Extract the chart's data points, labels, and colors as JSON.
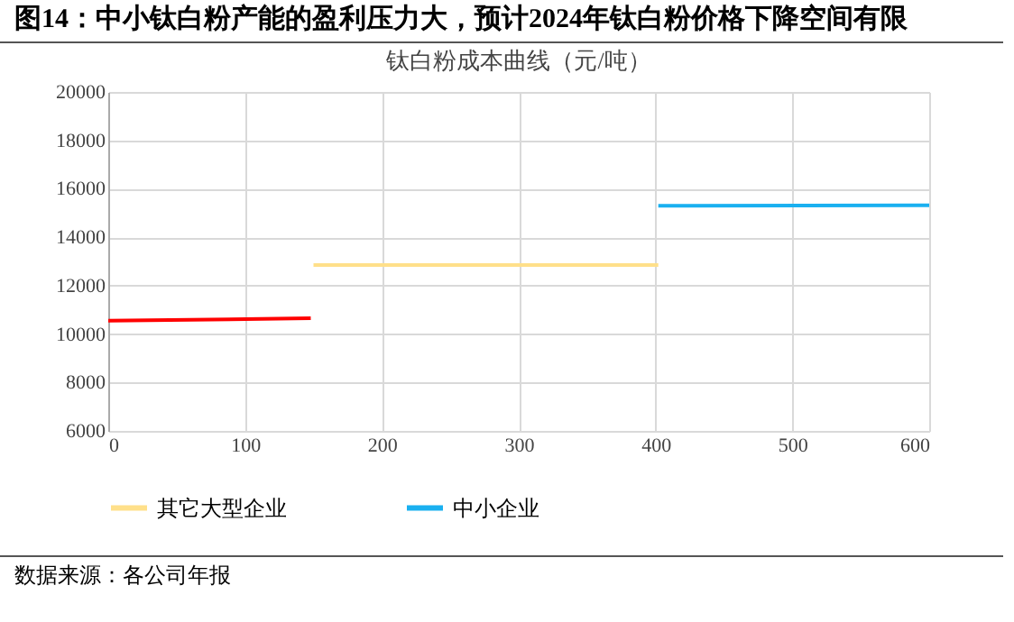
{
  "chart_data": {
    "type": "line",
    "title": "图14：中小钛白粉产能的盈利压力大，预计2024年钛白粉价格下降空间有限",
    "subtitle": "钛白粉成本曲线（元/吨）",
    "series": [
      {
        "color": "#ff0000",
        "x": [
          0,
          148
        ],
        "values": [
          10550,
          10650
        ]
      },
      {
        "name": "其它大型企业",
        "color": "#ffe08a",
        "x": [
          150,
          402
        ],
        "values": [
          12850,
          12850
        ]
      },
      {
        "name": "中小企业",
        "color": "#1ab0f0",
        "x": [
          402,
          600
        ],
        "values": [
          15300,
          15320
        ]
      }
    ],
    "xlim": [
      0,
      600
    ],
    "xticks": [
      0,
      100,
      200,
      300,
      400,
      500,
      600
    ],
    "ylim": [
      6000,
      20000
    ],
    "yticks": [
      6000,
      8000,
      10000,
      12000,
      14000,
      16000,
      18000,
      20000
    ],
    "grid": true,
    "legend": "bottom",
    "marker": "none",
    "line_style": "solid",
    "annotations": [
      "数据来源：各公司年报"
    ]
  }
}
